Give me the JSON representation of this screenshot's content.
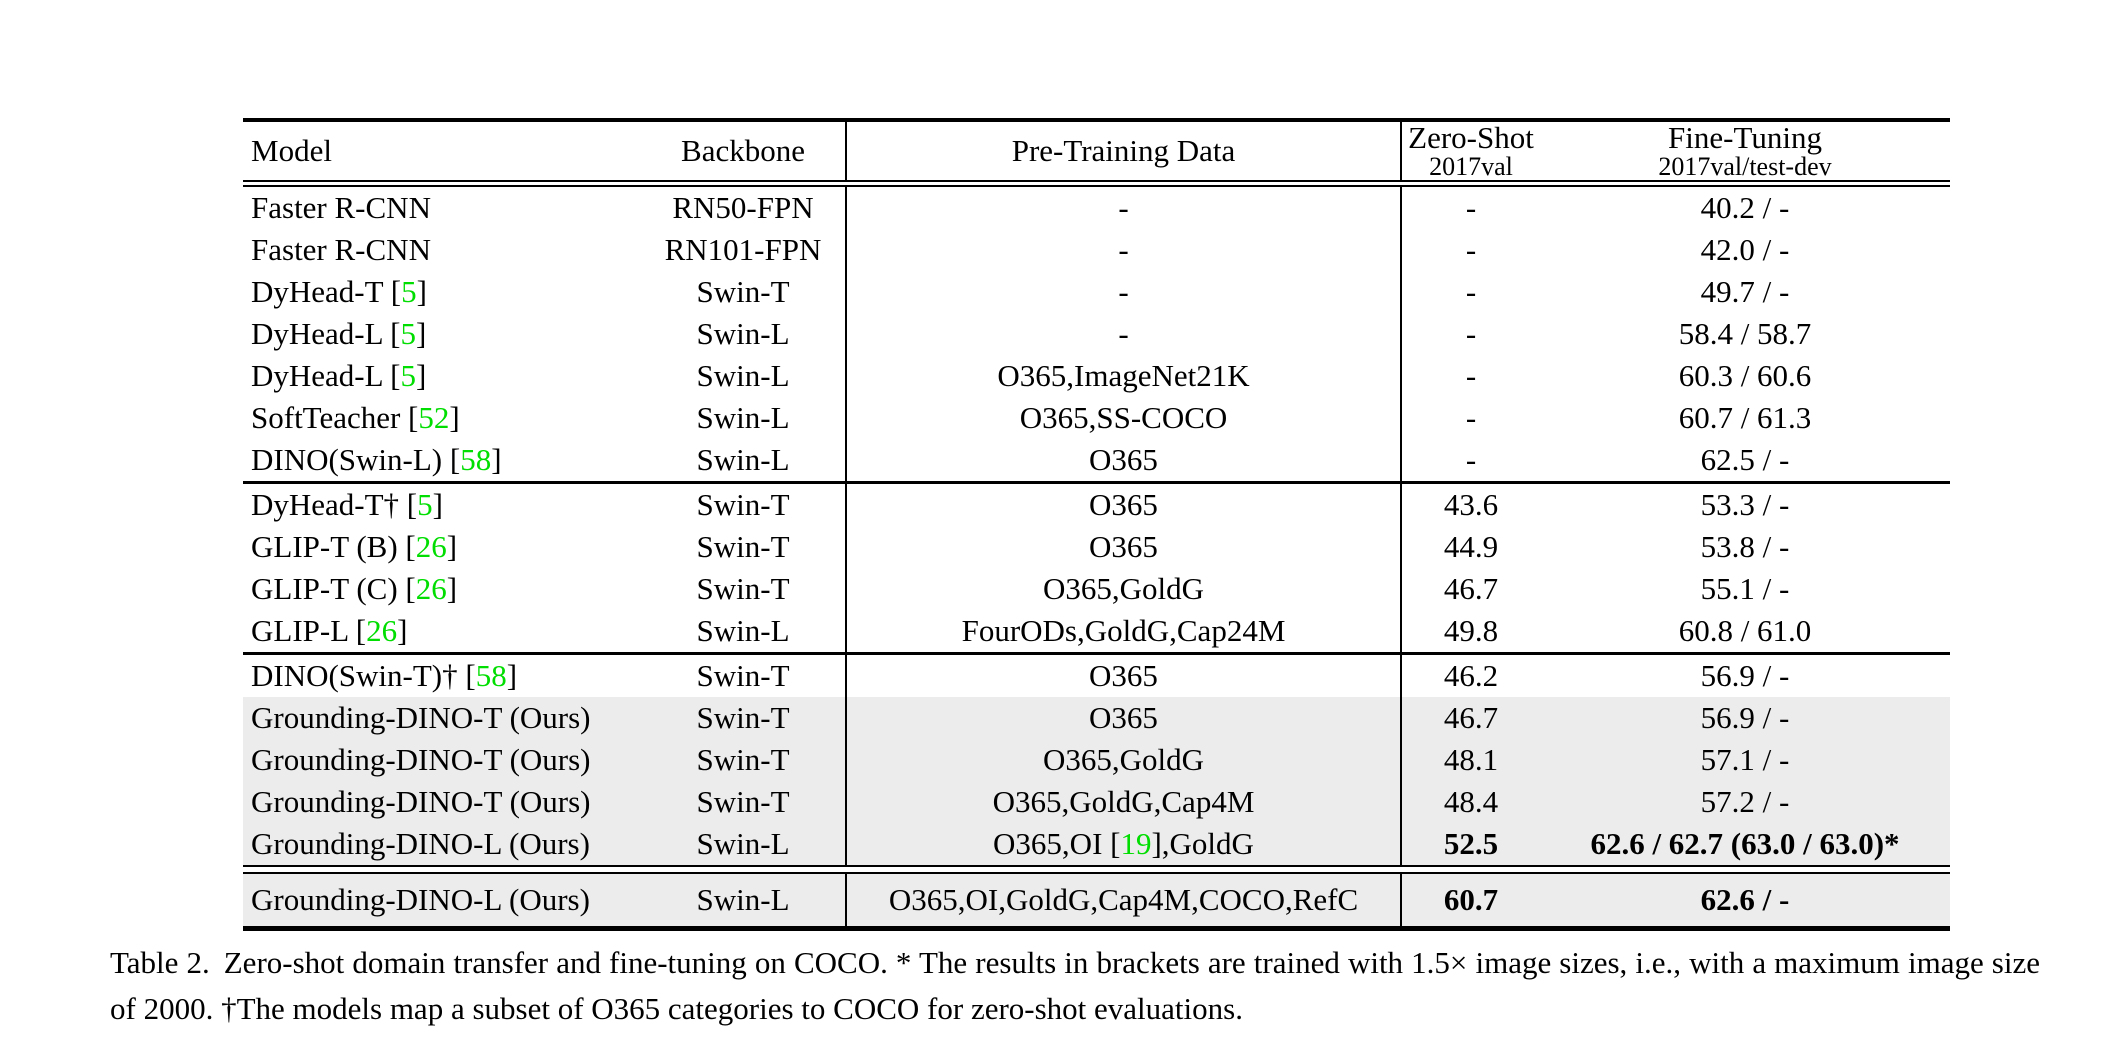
{
  "colors": {
    "citation_green": "#00dd00",
    "highlight_gray": "#ececec",
    "rule_black": "#000000"
  },
  "table": {
    "header": {
      "model": "Model",
      "backbone": "Backbone",
      "pretrain": "Pre-Training Data",
      "zeroshot": {
        "label": "Zero-Shot",
        "sub": "2017val"
      },
      "finetune": {
        "label": "Fine-Tuning",
        "sub": "2017val/test-dev"
      }
    },
    "groups": [
      {
        "rows": [
          {
            "model": "Faster R-CNN",
            "backbone": "RN50-FPN",
            "pretrain": "-",
            "zeroshot": "-",
            "finetune": "40.2 / -",
            "highlight": false,
            "bold": false
          },
          {
            "model": "Faster R-CNN",
            "backbone": "RN101-FPN",
            "pretrain": "-",
            "zeroshot": "-",
            "finetune": "42.0 / -",
            "highlight": false,
            "bold": false
          },
          {
            "model": "DyHead-T [5]",
            "backbone": "Swin-T",
            "pretrain": "-",
            "zeroshot": "-",
            "finetune": "49.7 / -",
            "highlight": false,
            "bold": false
          },
          {
            "model": "DyHead-L [5]",
            "backbone": "Swin-L",
            "pretrain": "-",
            "zeroshot": "-",
            "finetune": "58.4 / 58.7",
            "highlight": false,
            "bold": false
          },
          {
            "model": "DyHead-L [5]",
            "backbone": "Swin-L",
            "pretrain": "O365,ImageNet21K",
            "zeroshot": "-",
            "finetune": "60.3 / 60.6",
            "highlight": false,
            "bold": false
          },
          {
            "model": "SoftTeacher [52]",
            "backbone": "Swin-L",
            "pretrain": "O365,SS-COCO",
            "zeroshot": "-",
            "finetune": "60.7 / 61.3",
            "highlight": false,
            "bold": false
          },
          {
            "model": "DINO(Swin-L) [58]",
            "backbone": "Swin-L",
            "pretrain": "O365",
            "zeroshot": "-",
            "finetune": "62.5 / -",
            "highlight": false,
            "bold": false
          }
        ]
      },
      {
        "rows": [
          {
            "model": "DyHead-T† [5]",
            "backbone": "Swin-T",
            "pretrain": "O365",
            "zeroshot": "43.6",
            "finetune": "53.3 / -",
            "highlight": false,
            "bold": false
          },
          {
            "model": "GLIP-T (B) [26]",
            "backbone": "Swin-T",
            "pretrain": "O365",
            "zeroshot": "44.9",
            "finetune": "53.8 / -",
            "highlight": false,
            "bold": false
          },
          {
            "model": "GLIP-T (C) [26]",
            "backbone": "Swin-T",
            "pretrain": "O365,GoldG",
            "zeroshot": "46.7",
            "finetune": "55.1 / -",
            "highlight": false,
            "bold": false
          },
          {
            "model": "GLIP-L [26]",
            "backbone": "Swin-L",
            "pretrain": "FourODs,GoldG,Cap24M",
            "zeroshot": "49.8",
            "finetune": "60.8 / 61.0",
            "highlight": false,
            "bold": false
          }
        ]
      },
      {
        "rows": [
          {
            "model": "DINO(Swin-T)† [58]",
            "backbone": "Swin-T",
            "pretrain": "O365",
            "zeroshot": "46.2",
            "finetune": "56.9 / -",
            "highlight": false,
            "bold": false
          },
          {
            "model": "Grounding-DINO-T (Ours)",
            "backbone": "Swin-T",
            "pretrain": "O365",
            "zeroshot": "46.7",
            "finetune": "56.9 / -",
            "highlight": true,
            "bold": false
          },
          {
            "model": "Grounding-DINO-T (Ours)",
            "backbone": "Swin-T",
            "pretrain": "O365,GoldG",
            "zeroshot": "48.1",
            "finetune": "57.1 / -",
            "highlight": true,
            "bold": false
          },
          {
            "model": "Grounding-DINO-T (Ours)",
            "backbone": "Swin-T",
            "pretrain": "O365,GoldG,Cap4M",
            "zeroshot": "48.4",
            "finetune": "57.2 / -",
            "highlight": true,
            "bold": false
          },
          {
            "model": "Grounding-DINO-L (Ours)",
            "backbone": "Swin-L",
            "pretrain": "O365,OI [19],GoldG",
            "zeroshot": "52.5",
            "finetune": "62.6 / 62.7 (63.0 / 63.0)*",
            "highlight": true,
            "bold": true
          }
        ]
      },
      {
        "rows": [
          {
            "model": "Grounding-DINO-L (Ours)",
            "backbone": "Swin-L",
            "pretrain": "O365,OI,GoldG,Cap4M,COCO,RefC",
            "zeroshot": "60.7",
            "finetune": "62.6 / -",
            "highlight": true,
            "bold": true
          }
        ]
      }
    ]
  },
  "caption": {
    "label": "Table 2.",
    "text": "Zero-shot domain transfer and fine-tuning on COCO. * The results in brackets are trained with 1.5× image sizes, i.e., with a maximum image size of 2000. †The models map a subset of O365 categories to COCO for zero-shot evaluations."
  }
}
